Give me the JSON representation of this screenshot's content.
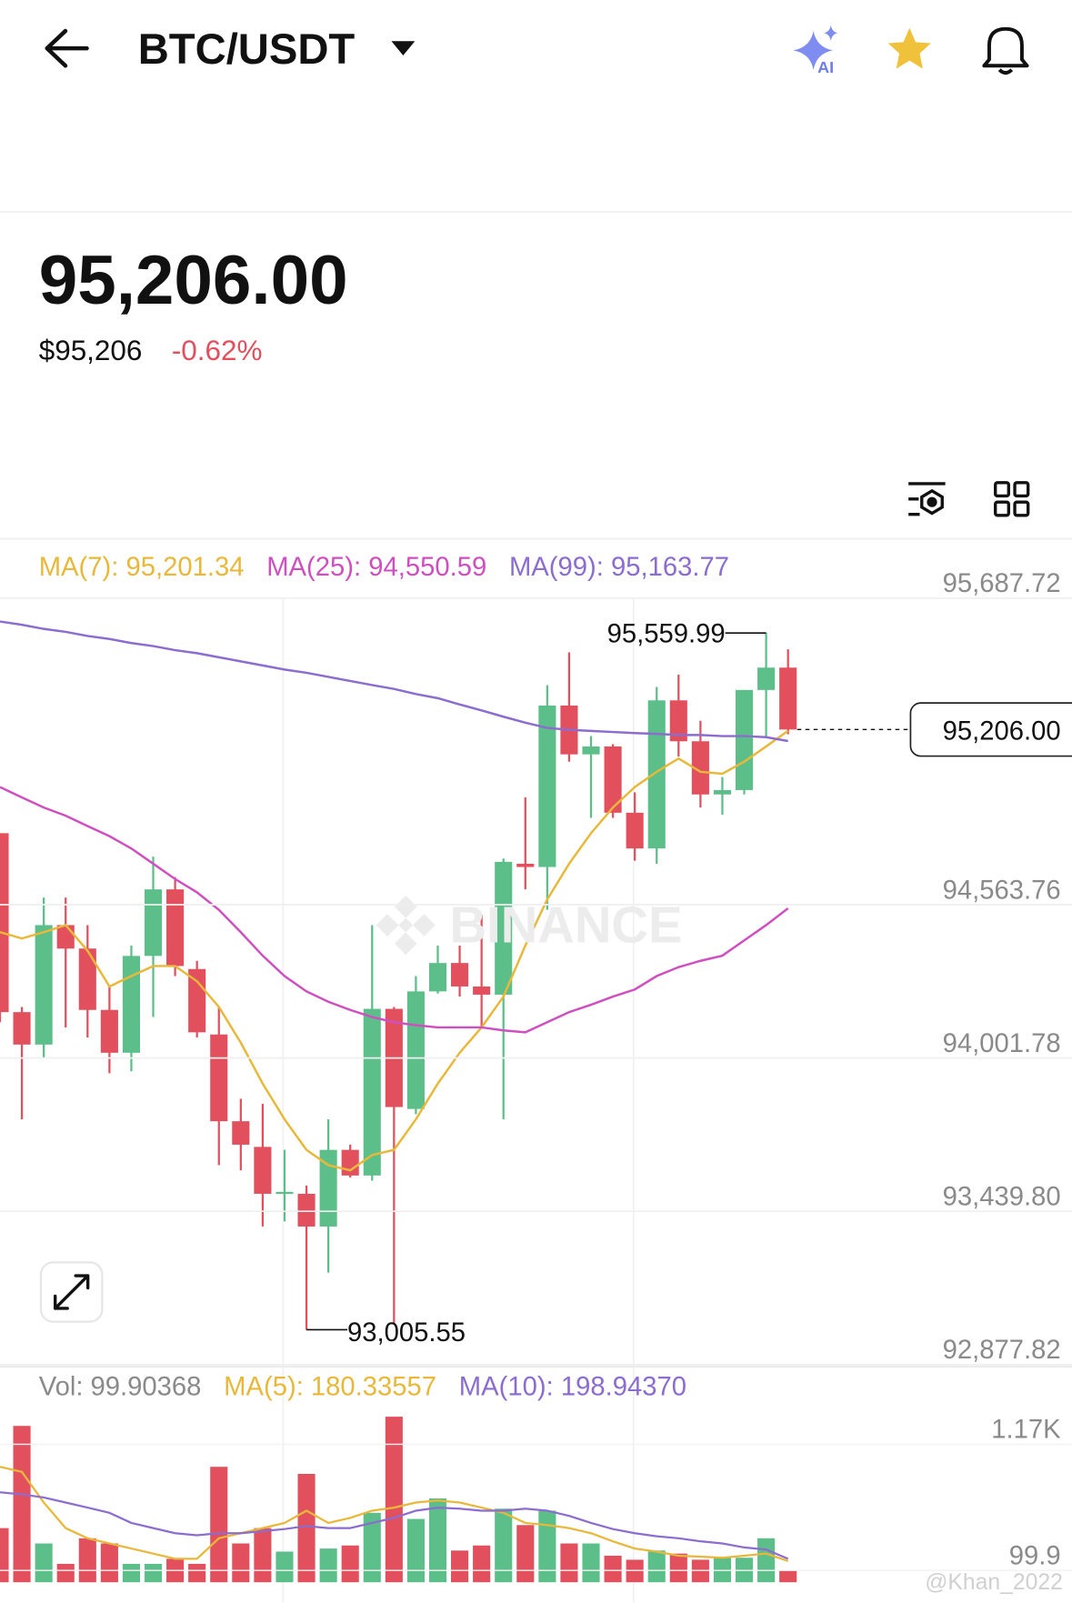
{
  "header": {
    "title": "BTC/USDT"
  },
  "price": {
    "last": "95,206.00",
    "usd": "$95,206",
    "change": "-0.62%"
  },
  "chart_data": [
    {
      "type": "candlestick",
      "watermark": "BINANCE",
      "up_color": "#5cbf8a",
      "down_color": "#e2505e",
      "ylim": [
        92877.82,
        95687.72
      ],
      "yticks": [
        {
          "value": 95687.72,
          "label": "95,687.72"
        },
        {
          "value": 94563.76,
          "label": "94,563.76"
        },
        {
          "value": 94001.78,
          "label": "94,001.78"
        },
        {
          "value": 93439.8,
          "label": "93,439.80"
        },
        {
          "value": 92877.82,
          "label": "92,877.82"
        }
      ],
      "grid": true,
      "open": [
        94826,
        94170,
        94051,
        94489,
        94403,
        94178,
        94021,
        94376,
        94620,
        94328,
        94088,
        93770,
        93676,
        93504,
        93504,
        93384,
        93665,
        93571,
        94182,
        93815,
        94246,
        94350,
        94264,
        94234,
        94714,
        94702,
        95294,
        95115,
        95144,
        94901,
        94770,
        95313,
        95163,
        94968,
        94984,
        95351,
        95433
      ],
      "high": [
        94826,
        94189,
        94590,
        94590,
        94489,
        94264,
        94414,
        94740,
        94665,
        94358,
        94189,
        93852,
        93834,
        93665,
        93534,
        93777,
        93684,
        94489,
        94189,
        94302,
        94414,
        94414,
        94526,
        94733,
        94957,
        95369,
        95489,
        95182,
        95152,
        94976,
        95362,
        95407,
        95238,
        95032,
        95351,
        95559.99,
        95500
      ],
      "low": [
        94133,
        93777,
        94002,
        94114,
        94077,
        93946,
        93953,
        94152,
        94302,
        94077,
        93609,
        93590,
        93384,
        93403,
        93005.55,
        93215,
        93564,
        93552,
        93030,
        93796,
        94238,
        94227,
        94114,
        93777,
        94620,
        94545,
        95088,
        94882,
        94882,
        94725,
        94714,
        95107,
        94920,
        94894,
        94968,
        95175,
        95189
      ],
      "close": [
        94170,
        94051,
        94489,
        94403,
        94178,
        94021,
        94376,
        94620,
        94339,
        94096,
        93770,
        93684,
        93504,
        93511,
        93384,
        93665,
        93571,
        94182,
        93822,
        94246,
        94350,
        94264,
        94234,
        94721,
        94702,
        95294,
        95115,
        95144,
        94901,
        94770,
        95313,
        95163,
        94968,
        94984,
        95351,
        95433,
        95206.0
      ],
      "high_label": "95,559.99",
      "low_label": "93,005.55",
      "last_price_label": "95,206.00",
      "series": [
        {
          "name": "MA(7): 95,201.34",
          "color": "#e8b83a",
          "values": [
            94463,
            94440,
            94463,
            94489,
            94395,
            94264,
            94302,
            94339,
            94339,
            94283,
            94189,
            94058,
            93908,
            93777,
            93665,
            93609,
            93590,
            93646,
            93665,
            93777,
            93908,
            94021,
            94114,
            94227,
            94414,
            94583,
            94714,
            94826,
            94920,
            94995,
            95051,
            95100,
            95051,
            95044,
            95088,
            95144,
            95201.34
          ]
        },
        {
          "name": "MA(25): 94,550.59",
          "color": "#d04fc0",
          "values": [
            94995,
            94957,
            94920,
            94890,
            94852,
            94815,
            94770,
            94714,
            94658,
            94609,
            94545,
            94463,
            94377,
            94302,
            94246,
            94208,
            94178,
            94152,
            94133,
            94122,
            94114,
            94114,
            94114,
            94103,
            94096,
            94133,
            94170,
            94197,
            94227,
            94253,
            94302,
            94335,
            94358,
            94377,
            94433,
            94489,
            94550.59
          ]
        },
        {
          "name": "MA(99): 95,163.77",
          "color": "#8c6ccf",
          "values": [
            95602,
            95590,
            95575,
            95564,
            95549,
            95538,
            95523,
            95512,
            95497,
            95486,
            95471,
            95456,
            95441,
            95426,
            95414,
            95399,
            95384,
            95369,
            95355,
            95336,
            95321,
            95298,
            95276,
            95253,
            95231,
            95212,
            95205,
            95201,
            95197,
            95193,
            95190,
            95186,
            95186,
            95182,
            95182,
            95178,
            95163.77
          ]
        }
      ]
    },
    {
      "type": "bar",
      "legend": "Vol: 99.90368",
      "ylim": [
        0,
        1456
      ],
      "yticks": [
        {
          "value": 1170,
          "label": "1.17K"
        },
        99.9
      ],
      "values": [
        459,
        1326,
        329,
        156,
        373,
        329,
        156,
        156,
        199,
        156,
        979,
        329,
        459,
        260,
        919,
        286,
        312,
        589,
        1404,
        537,
        711,
        269,
        312,
        624,
        485,
        607,
        329,
        329,
        225,
        191,
        269,
        243,
        191,
        208,
        208,
        373,
        99.90368
      ],
      "series": [
        {
          "name": "MA(5): 180.33557",
          "color": "#e8b83a",
          "values": [
            979,
            936,
            676,
            459,
            373,
            329,
            286,
            243,
            199,
            199,
            373,
            416,
            459,
            503,
            607,
            503,
            546,
            607,
            633,
            676,
            693,
            676,
            633,
            589,
            503,
            485,
            459,
            416,
            347,
            286,
            260,
            225,
            217,
            208,
            225,
            243,
            180.33557
          ]
        },
        {
          "name": "MA(10): 198.94370",
          "color": "#8c6ccf",
          "values": [
            763,
            745,
            719,
            676,
            633,
            589,
            503,
            459,
            416,
            399,
            416,
            416,
            433,
            451,
            477,
            459,
            459,
            503,
            546,
            607,
            633,
            624,
            607,
            607,
            624,
            607,
            563,
            503,
            451,
            416,
            390,
            373,
            347,
            329,
            295,
            277,
            198.9437
          ]
        }
      ]
    }
  ],
  "credit": "@Khan_2022"
}
